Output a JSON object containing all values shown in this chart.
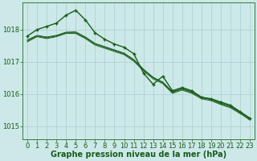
{
  "background_color": "#cce8e8",
  "grid_color": "#aacfcf",
  "line_color": "#1a5c1a",
  "marker_color": "#1a5c1a",
  "xlabel": "Graphe pression niveau de la mer (hPa)",
  "xlabel_fontsize": 7,
  "ylim": [
    1014.6,
    1018.85
  ],
  "xlim": [
    -0.5,
    23.5
  ],
  "yticks": [
    1015,
    1016,
    1017,
    1018
  ],
  "xticks": [
    0,
    1,
    2,
    3,
    4,
    5,
    6,
    7,
    8,
    9,
    10,
    11,
    12,
    13,
    14,
    15,
    16,
    17,
    18,
    19,
    20,
    21,
    22,
    23
  ],
  "series": [
    {
      "y": [
        1017.8,
        1018.0,
        1018.1,
        1018.2,
        1018.45,
        1018.6,
        1018.3,
        1017.9,
        1017.7,
        1017.55,
        1017.45,
        1017.25,
        1016.65,
        1016.3,
        1016.55,
        1016.1,
        1016.2,
        1016.1,
        1015.9,
        1015.85,
        1015.75,
        1015.65,
        1015.45,
        1015.25
      ],
      "marked": true,
      "lw": 1.0,
      "zorder": 5
    },
    {
      "y": [
        1017.65,
        1017.8,
        1017.75,
        1017.8,
        1017.9,
        1017.9,
        1017.75,
        1017.55,
        1017.45,
        1017.35,
        1017.25,
        1017.05,
        1016.75,
        1016.5,
        1016.35,
        1016.05,
        1016.15,
        1016.05,
        1015.88,
        1015.82,
        1015.7,
        1015.6,
        1015.42,
        1015.22
      ],
      "marked": false,
      "lw": 0.7,
      "zorder": 3
    },
    {
      "y": [
        1017.68,
        1017.82,
        1017.77,
        1017.82,
        1017.92,
        1017.93,
        1017.77,
        1017.57,
        1017.47,
        1017.37,
        1017.27,
        1017.07,
        1016.77,
        1016.52,
        1016.37,
        1016.07,
        1016.17,
        1016.07,
        1015.9,
        1015.84,
        1015.72,
        1015.62,
        1015.44,
        1015.24
      ],
      "marked": false,
      "lw": 0.7,
      "zorder": 3
    },
    {
      "y": [
        1017.62,
        1017.78,
        1017.72,
        1017.78,
        1017.88,
        1017.88,
        1017.72,
        1017.52,
        1017.42,
        1017.32,
        1017.22,
        1017.02,
        1016.72,
        1016.47,
        1016.32,
        1016.02,
        1016.12,
        1016.02,
        1015.85,
        1015.79,
        1015.67,
        1015.57,
        1015.39,
        1015.19
      ],
      "marked": false,
      "lw": 0.7,
      "zorder": 3
    }
  ],
  "tick_fontsize": 6,
  "tick_color": "#1a5c1a",
  "spine_color": "#3a7a3a",
  "marker_size": 3.5,
  "marker_lw": 1.0
}
